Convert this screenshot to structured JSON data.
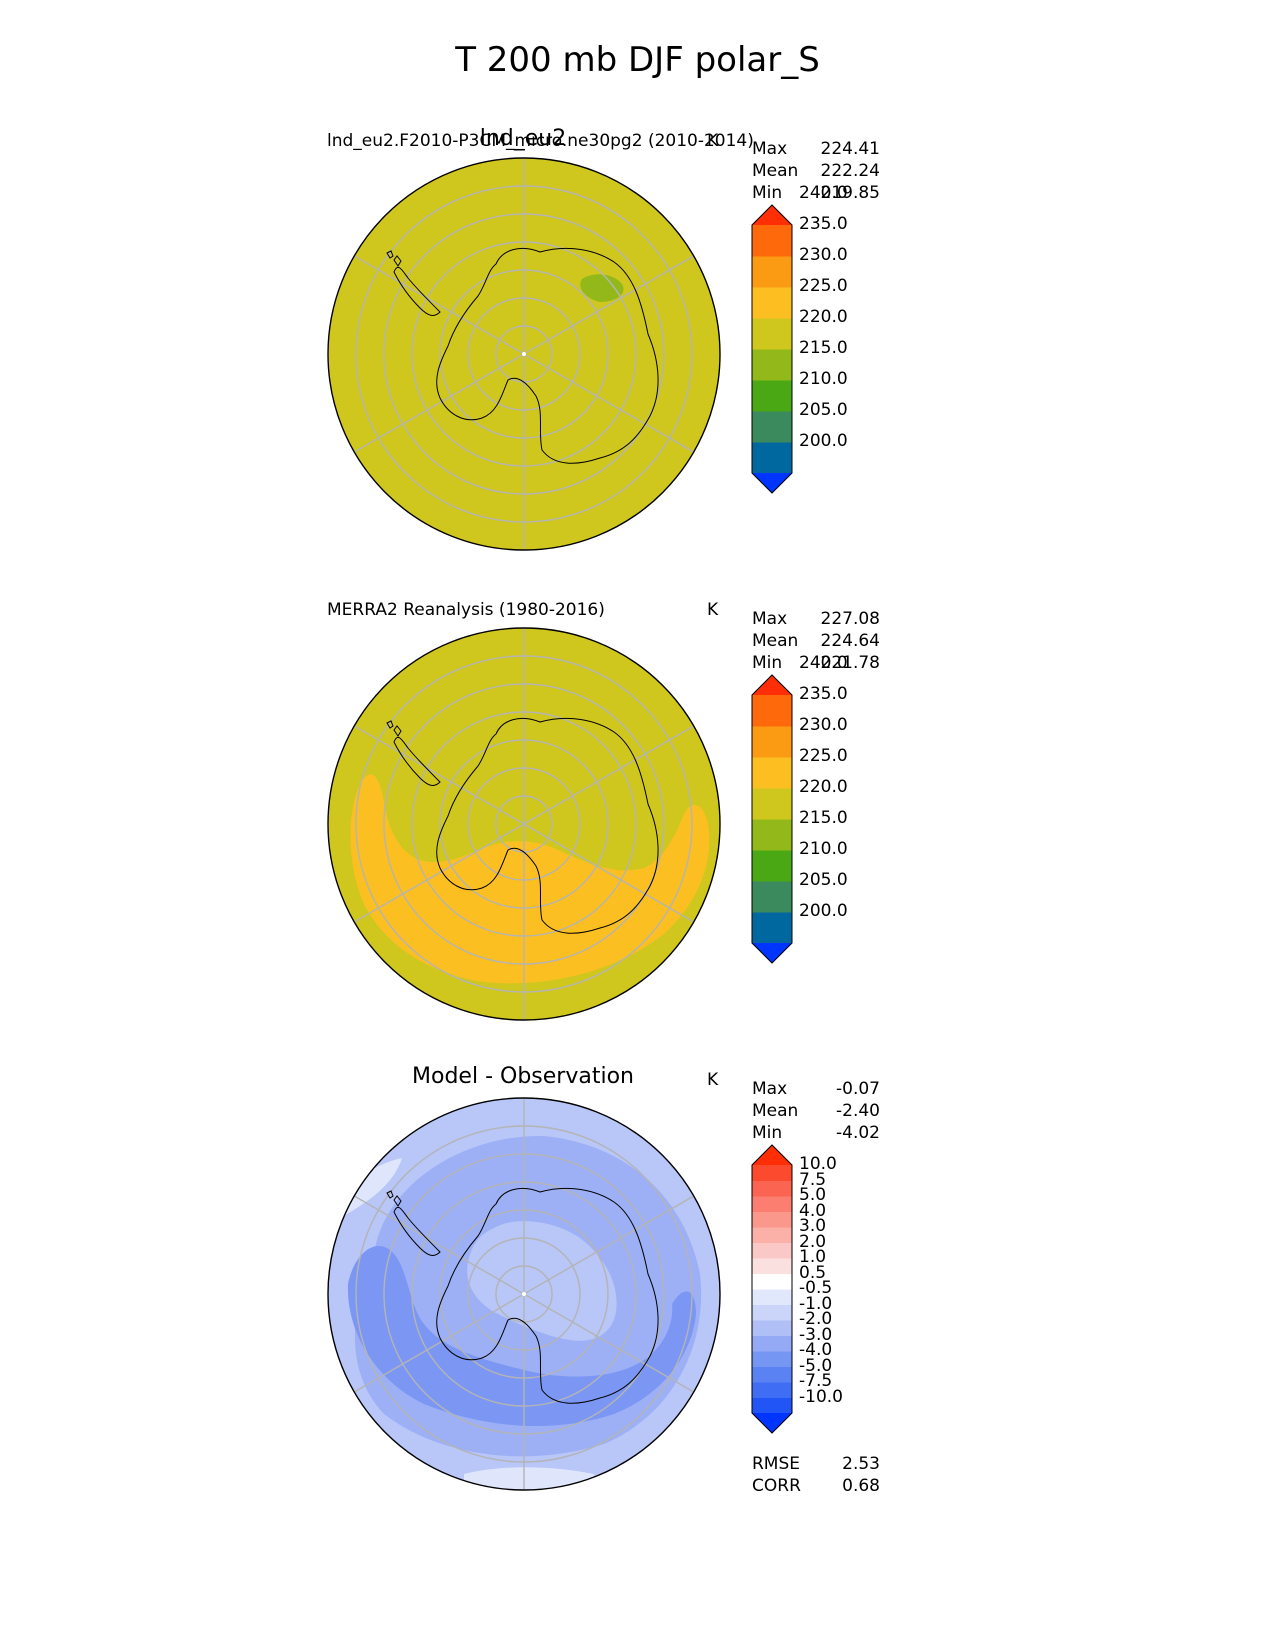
{
  "figure": {
    "title": "T 200 mb DJF polar_S"
  },
  "panels": [
    {
      "id": "test",
      "title": "lnd_eu2",
      "left_label": "lnd_eu2.F2010-P3CM_micro.ne30pg2 (2010-2014)",
      "units": "K",
      "stats": [
        {
          "label": "Max",
          "value": "224.41"
        },
        {
          "label": "Mean",
          "value": "222.24"
        },
        {
          "label": "Min",
          "value": "219.85"
        }
      ],
      "colorbar": {
        "colors": [
          "#0035ff",
          "#00689e",
          "#3a8a5e",
          "#4aa814",
          "#93b81a",
          "#d0c71e",
          "#fbbf22",
          "#fb9b14",
          "#fe690b",
          "#ff2e06"
        ],
        "ticks": [
          "200.0",
          "205.0",
          "210.0",
          "215.0",
          "220.0",
          "225.0",
          "230.0",
          "235.0",
          "240.0"
        ]
      },
      "fields": [
        {
          "name": "field-background",
          "color": "#d0c71e"
        },
        {
          "name": "cold-patch-215-220",
          "color": "#93b81a"
        }
      ]
    },
    {
      "id": "reference",
      "title": "",
      "left_label": "MERRA2 Reanalysis (1980-2016)",
      "units": "K",
      "stats": [
        {
          "label": "Max",
          "value": "227.08"
        },
        {
          "label": "Mean",
          "value": "224.64"
        },
        {
          "label": "Min",
          "value": "221.78"
        }
      ],
      "colorbar": {
        "colors": [
          "#0035ff",
          "#00689e",
          "#3a8a5e",
          "#4aa814",
          "#93b81a",
          "#d0c71e",
          "#fbbf22",
          "#fb9b14",
          "#fe690b",
          "#ff2e06"
        ],
        "ticks": [
          "200.0",
          "205.0",
          "210.0",
          "215.0",
          "220.0",
          "225.0",
          "230.0",
          "235.0",
          "240.0"
        ]
      },
      "fields": [
        {
          "name": "field-background",
          "color": "#d0c71e"
        },
        {
          "name": "warm-band-225-230",
          "color": "#fbbf22"
        }
      ]
    },
    {
      "id": "diff",
      "title": "Model - Observation",
      "left_label": "",
      "units": "K",
      "stats": [
        {
          "label": "Max",
          "value": "-0.07"
        },
        {
          "label": "Mean",
          "value": "-2.40"
        },
        {
          "label": "Min",
          "value": "-4.02"
        }
      ],
      "extra_stats": [
        {
          "label": "RMSE",
          "value": "2.53"
        },
        {
          "label": "CORR",
          "value": "0.68"
        }
      ],
      "colorbar": {
        "colors": [
          "#0035ff",
          "#2255f5",
          "#3f6ef5",
          "#5a82f3",
          "#7696f4",
          "#94aaf5",
          "#b0c0f6",
          "#cad5f9",
          "#e2e8fb",
          "#ffffff",
          "#fbe0e0",
          "#fbc8c8",
          "#fbb0a8",
          "#fb988c",
          "#fb7e70",
          "#fb6450",
          "#fb4a2e",
          "#ff2e06"
        ],
        "ticks": [
          "-10.0",
          "-7.5",
          "-5.0",
          "-4.0",
          "-3.0",
          "-2.0",
          "-1.0",
          "-0.5",
          "0.5",
          "1.0",
          "2.0",
          "3.0",
          "4.0",
          "5.0",
          "7.5",
          "10.0"
        ]
      },
      "fields": [
        {
          "name": "field-background",
          "color": "#b8c6f8"
        },
        {
          "name": "band-minus2-minus3",
          "color": "#9db0f5"
        },
        {
          "name": "band-minus3-minus4",
          "color": "#7c97f3"
        },
        {
          "name": "band-minus0p5-minus1",
          "color": "#dfe6fc"
        }
      ]
    }
  ]
}
